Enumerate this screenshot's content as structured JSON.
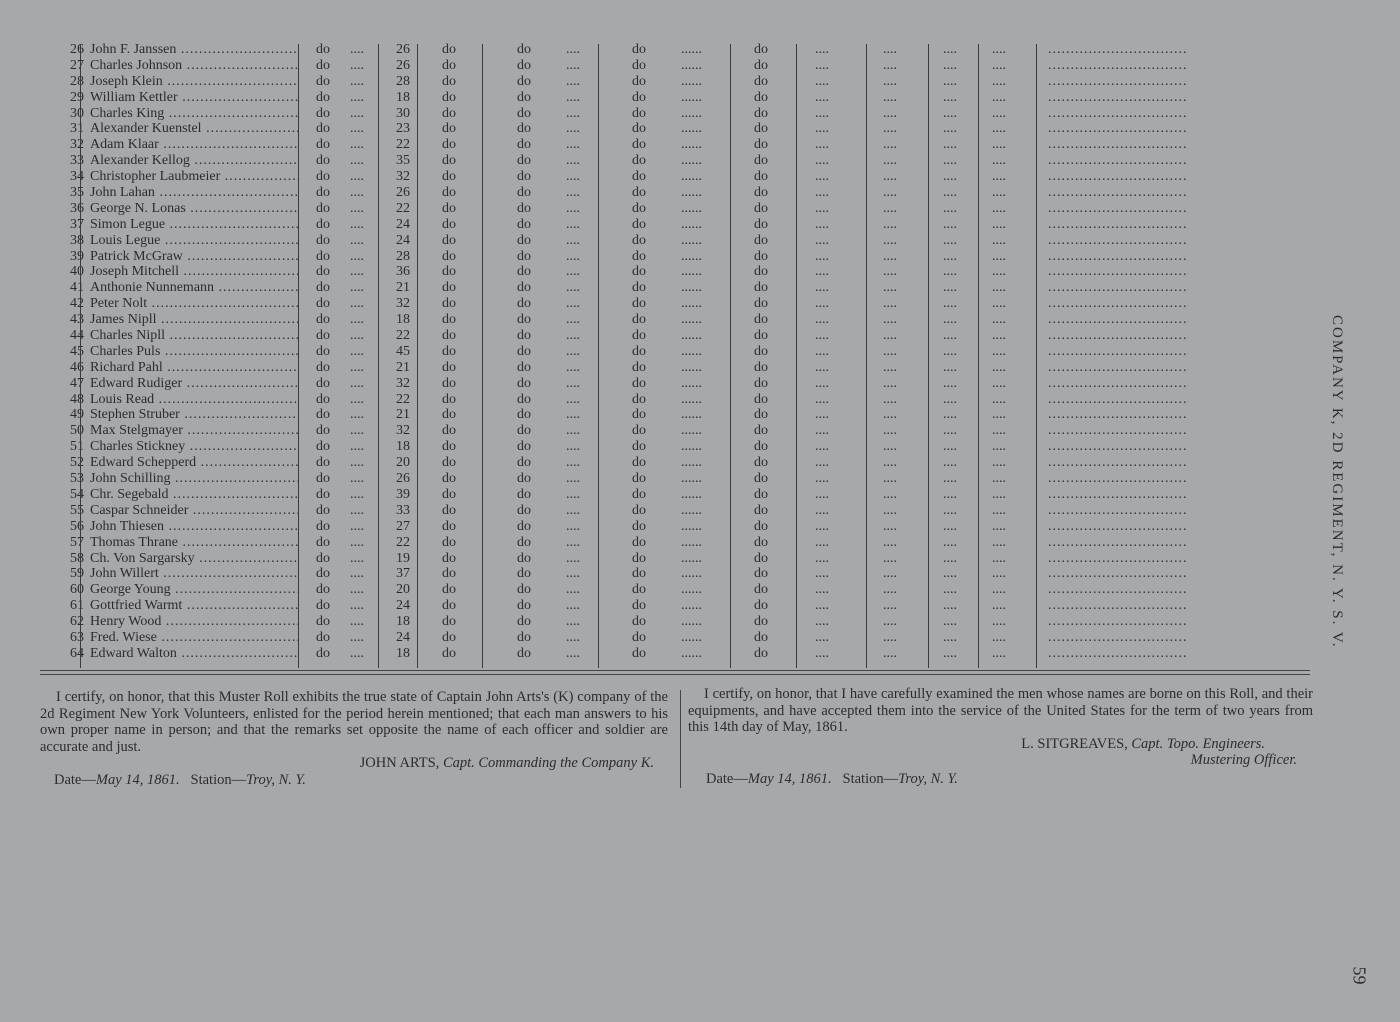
{
  "roll": {
    "ditto": "do",
    "rows": [
      {
        "no": "26",
        "name": "John F. Janssen",
        "age": "26"
      },
      {
        "no": "27",
        "name": "Charles Johnson",
        "age": "26"
      },
      {
        "no": "28",
        "name": "Joseph Klein",
        "age": "28"
      },
      {
        "no": "29",
        "name": "William Kettler",
        "age": "18"
      },
      {
        "no": "30",
        "name": "Charles King",
        "age": "30"
      },
      {
        "no": "31",
        "name": "Alexander Kuenstel",
        "age": "23"
      },
      {
        "no": "32",
        "name": "Adam Klaar",
        "age": "22"
      },
      {
        "no": "33",
        "name": "Alexander Kellog",
        "age": "35"
      },
      {
        "no": "34",
        "name": "Christopher Laubmeier",
        "age": "32"
      },
      {
        "no": "35",
        "name": "John Lahan",
        "age": "26"
      },
      {
        "no": "36",
        "name": "George N. Lonas",
        "age": "22"
      },
      {
        "no": "37",
        "name": "Simon Legue",
        "age": "24"
      },
      {
        "no": "38",
        "name": "Louis Legue",
        "age": "24"
      },
      {
        "no": "39",
        "name": "Patrick McGraw",
        "age": "28"
      },
      {
        "no": "40",
        "name": "Joseph Mitchell",
        "age": "36"
      },
      {
        "no": "41",
        "name": "Anthonie Nunnemann",
        "age": "21"
      },
      {
        "no": "42",
        "name": "Peter Nolt",
        "age": "32"
      },
      {
        "no": "43",
        "name": "James Nipll",
        "age": "18"
      },
      {
        "no": "44",
        "name": "Charles Nipll",
        "age": "22"
      },
      {
        "no": "45",
        "name": "Charles Puls",
        "age": "45"
      },
      {
        "no": "46",
        "name": "Richard Pahl",
        "age": "21"
      },
      {
        "no": "47",
        "name": "Edward Rudiger",
        "age": "32"
      },
      {
        "no": "48",
        "name": "Louis Read",
        "age": "22"
      },
      {
        "no": "49",
        "name": "Stephen Struber",
        "age": "21"
      },
      {
        "no": "50",
        "name": "Max Stelgmayer",
        "age": "32"
      },
      {
        "no": "51",
        "name": "Charles Stickney",
        "age": "18"
      },
      {
        "no": "52",
        "name": "Edward Schepperd",
        "age": "20"
      },
      {
        "no": "53",
        "name": "John Schilling",
        "age": "26"
      },
      {
        "no": "54",
        "name": "Chr. Segebald",
        "age": "39"
      },
      {
        "no": "55",
        "name": "Caspar Schneider",
        "age": "33"
      },
      {
        "no": "56",
        "name": "John Thiesen",
        "age": "27"
      },
      {
        "no": "57",
        "name": "Thomas Thrane",
        "age": "22"
      },
      {
        "no": "58",
        "name": "Ch. Von Sargarsky",
        "age": "19"
      },
      {
        "no": "59",
        "name": "John Willert",
        "age": "37"
      },
      {
        "no": "60",
        "name": "George Young",
        "age": "20"
      },
      {
        "no": "61",
        "name": "Gottfried Warmt",
        "age": "24"
      },
      {
        "no": "62",
        "name": "Henry Wood",
        "age": "18"
      },
      {
        "no": "63",
        "name": "Fred. Wiese",
        "age": "24"
      },
      {
        "no": "64",
        "name": "Edward Walton",
        "age": "18"
      }
    ]
  },
  "captain_cert": {
    "text": "I certify, on honor, that this Muster Roll exhibits the true state of Captain John Arts's (K) company of the 2d Regiment New York Volunteers, enlisted for the period herein mentioned; that each man answers to his own proper name in person; and that the remarks set opposite the name of each officer and soldier are accurate and just.",
    "signer": "JOHN ARTS,",
    "signer_title": "Capt. Commanding the Company K.",
    "date_label": "Date—",
    "date": "May 14, 1861.",
    "station_label": "Station—",
    "station": "Troy, N. Y."
  },
  "mustering_cert": {
    "text": "I certify, on honor, that I have carefully examined the men whose names are borne on this Roll, and their equipments, and have accepted them into the service of the United States for the term of two years from this 14th day of May, 1861.",
    "signer": "L. SITGREAVES,",
    "signer_title": "Capt. Topo. Engineers.",
    "signer_role": "Mustering Officer.",
    "date_label": "Date—",
    "date": "May 14, 1861.",
    "station_label": "Station—",
    "station": "Troy, N. Y."
  },
  "side_heading": "COMPANY K, 2D REGIMENT, N. Y. S. V.",
  "page_number": "59"
}
